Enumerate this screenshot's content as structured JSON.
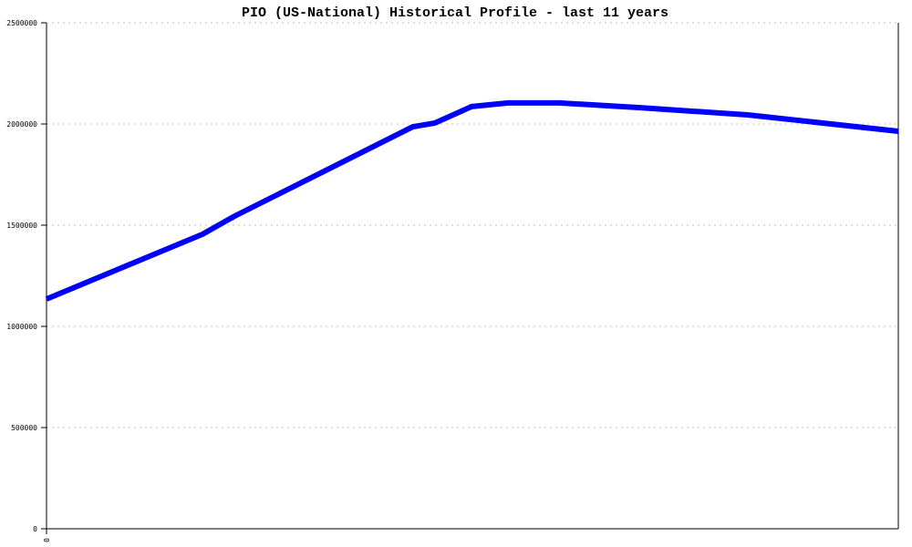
{
  "chart_data": {
    "type": "line",
    "title": "PIO (US-National) Historical Profile - last 11 years",
    "xlabel": "",
    "ylabel": "",
    "ylim": [
      0,
      2500000
    ],
    "xlim": [
      0,
      10
    ],
    "y_ticks": [
      "0",
      "500000",
      "1000000",
      "1500000",
      "2000000",
      "2500000"
    ],
    "x_ticks": [
      "0"
    ],
    "grid": "horizontal dotted",
    "line_color": "#0000ff",
    "grid_color": "#c0c0c0",
    "series": [
      {
        "x": [
          0,
          1.83,
          2.21,
          4.3,
          4.56,
          4.99,
          5.42,
          6.02,
          6.95,
          8.23,
          10
        ],
        "values": [
          1135000,
          1455000,
          1545000,
          1986000,
          2005000,
          2086000,
          2104000,
          2104000,
          2081000,
          2045000,
          1964000
        ]
      }
    ]
  }
}
